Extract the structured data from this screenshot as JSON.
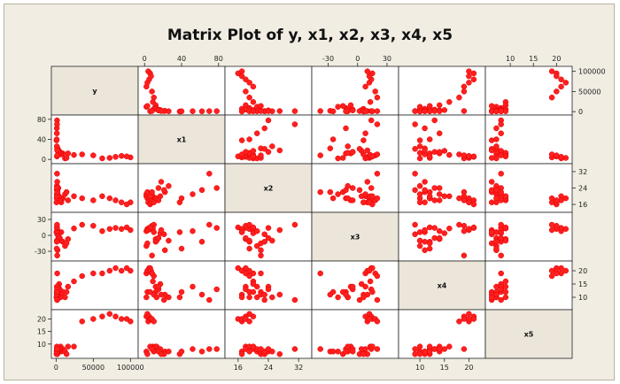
{
  "chart_data": {
    "type": "scatter_matrix",
    "title": "Matrix Plot of y, x1, x2, x3, x4, x5",
    "variables": [
      "y",
      "x1",
      "x2",
      "x3",
      "x4",
      "x5"
    ],
    "ranges": {
      "y": [
        -4000,
        108000
      ],
      "x1": [
        -5,
        85
      ],
      "x2": [
        13,
        35
      ],
      "x3": [
        -45,
        40
      ],
      "x4": [
        6,
        23
      ],
      "x5": [
        5,
        23
      ]
    },
    "ticks": {
      "y": [
        0,
        50000,
        100000
      ],
      "x1": [
        0,
        40,
        80
      ],
      "x2": [
        16,
        24,
        32
      ],
      "x3": [
        -30,
        0,
        30
      ],
      "x4": [
        10,
        15,
        20
      ],
      "x5": [
        10,
        15,
        20
      ]
    },
    "records": [
      [
        62000,
        2,
        20,
        8,
        19,
        21
      ],
      [
        72000,
        3,
        19,
        12,
        20,
        22
      ],
      [
        80000,
        5,
        18,
        14,
        21,
        21
      ],
      [
        100000,
        4,
        17,
        10,
        20,
        19
      ],
      [
        95000,
        6,
        16,
        15,
        21,
        20
      ],
      [
        88000,
        7,
        17,
        12,
        20,
        20
      ],
      [
        50000,
        8,
        18,
        18,
        19,
        20
      ],
      [
        35000,
        10,
        19,
        20,
        18,
        19
      ],
      [
        24000,
        9,
        20,
        13,
        16,
        9
      ],
      [
        16000,
        12,
        18,
        -7,
        14,
        9
      ],
      [
        9000,
        12,
        19,
        -12,
        12,
        8
      ],
      [
        7000,
        10,
        17,
        6,
        11,
        7
      ],
      [
        6000,
        13,
        19,
        -10,
        10,
        9
      ],
      [
        5000,
        15,
        18,
        -5,
        13,
        8
      ],
      [
        4000,
        17,
        20,
        4,
        15,
        8
      ],
      [
        12000,
        2,
        21,
        -20,
        10,
        7
      ],
      [
        14000,
        3,
        22,
        -15,
        12,
        6
      ],
      [
        3000,
        15,
        24,
        -5,
        14,
        7
      ],
      [
        2000,
        22,
        22,
        -28,
        11,
        7
      ],
      [
        1500,
        21,
        23,
        2,
        9,
        6
      ],
      [
        1000,
        26,
        25,
        -10,
        10,
        7
      ],
      [
        1500,
        18,
        27,
        10,
        11,
        6
      ],
      [
        500,
        38,
        17,
        6,
        10,
        6
      ],
      [
        800,
        40,
        19,
        -25,
        12,
        7
      ],
      [
        1000,
        52,
        21,
        8,
        14,
        8
      ],
      [
        900,
        62,
        23,
        -12,
        11,
        7
      ],
      [
        1200,
        78,
        24,
        14,
        13,
        8
      ],
      [
        1100,
        6,
        20,
        15,
        12,
        9
      ],
      [
        1300,
        70,
        31,
        20,
        9,
        8
      ],
      [
        1500,
        8,
        22,
        -38,
        19,
        8
      ]
    ]
  }
}
